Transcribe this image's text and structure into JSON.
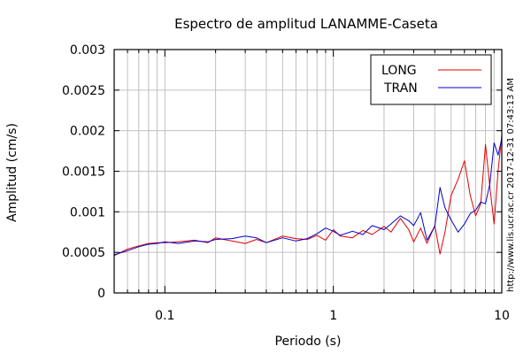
{
  "chart_data": {
    "type": "line",
    "title": "Espectro de amplitud LANAMME-Caseta",
    "xlabel": "Periodo (s)",
    "ylabel": "Amplitud (cm/s)",
    "xscale": "log",
    "xlim": [
      0.05,
      10
    ],
    "ylim": [
      0,
      0.003
    ],
    "xticks": [
      0.1,
      1,
      10
    ],
    "xtick_labels": [
      "0.1",
      "1",
      "10"
    ],
    "yticks": [
      0,
      0.0005,
      0.001,
      0.0015,
      0.002,
      0.0025,
      0.003
    ],
    "ytick_labels": [
      "0",
      "0.0005",
      "0.001",
      "0.0015",
      "0.002",
      "0.0025",
      "0.003"
    ],
    "grid": true,
    "legend_position": "top-right",
    "side_note": "http://www.lis.ucr.ac.cr   2017-12-31 07:43:13 AM",
    "series": [
      {
        "name": "LONG",
        "color": "#e00000",
        "x": [
          0.05,
          0.06,
          0.07,
          0.08,
          0.09,
          0.1,
          0.12,
          0.15,
          0.18,
          0.2,
          0.25,
          0.3,
          0.35,
          0.4,
          0.5,
          0.6,
          0.7,
          0.8,
          0.9,
          1.0,
          1.1,
          1.3,
          1.5,
          1.7,
          2.0,
          2.2,
          2.5,
          2.8,
          3.0,
          3.3,
          3.6,
          4.0,
          4.3,
          4.6,
          5.0,
          5.5,
          6.0,
          6.5,
          7.0,
          7.5,
          8.0,
          8.5,
          9.0,
          9.5,
          10.0
        ],
        "values": [
          0.00046,
          0.00054,
          0.00058,
          0.00061,
          0.00062,
          0.00062,
          0.00063,
          0.00065,
          0.00062,
          0.00068,
          0.00064,
          0.00061,
          0.00066,
          0.00062,
          0.0007,
          0.00067,
          0.00066,
          0.00071,
          0.00065,
          0.00078,
          0.0007,
          0.00068,
          0.00077,
          0.00072,
          0.00082,
          0.00075,
          0.00092,
          0.00078,
          0.00063,
          0.0008,
          0.00061,
          0.00083,
          0.00048,
          0.00075,
          0.0012,
          0.0014,
          0.00163,
          0.0012,
          0.00095,
          0.0011,
          0.00183,
          0.0013,
          0.00085,
          0.0015,
          0.00195
        ]
      },
      {
        "name": "TRAN",
        "color": "#0000cc",
        "x": [
          0.05,
          0.06,
          0.07,
          0.08,
          0.09,
          0.1,
          0.12,
          0.15,
          0.18,
          0.2,
          0.25,
          0.3,
          0.35,
          0.4,
          0.5,
          0.6,
          0.7,
          0.8,
          0.9,
          1.0,
          1.1,
          1.3,
          1.5,
          1.7,
          2.0,
          2.2,
          2.5,
          2.8,
          3.0,
          3.3,
          3.6,
          4.0,
          4.3,
          4.6,
          5.0,
          5.5,
          6.0,
          6.5,
          7.0,
          7.5,
          8.0,
          8.5,
          9.0,
          9.5,
          10.0
        ],
        "values": [
          0.00047,
          0.00052,
          0.00057,
          0.0006,
          0.00061,
          0.00063,
          0.00061,
          0.00064,
          0.00063,
          0.00066,
          0.00067,
          0.0007,
          0.00068,
          0.00062,
          0.00068,
          0.00064,
          0.00067,
          0.00073,
          0.0008,
          0.00076,
          0.00071,
          0.00076,
          0.00072,
          0.00083,
          0.00078,
          0.00085,
          0.00095,
          0.00089,
          0.00083,
          0.00099,
          0.00065,
          0.00082,
          0.0013,
          0.00105,
          0.0009,
          0.00075,
          0.00085,
          0.00098,
          0.00102,
          0.00112,
          0.0011,
          0.00135,
          0.00185,
          0.0017,
          0.0019
        ]
      }
    ]
  }
}
